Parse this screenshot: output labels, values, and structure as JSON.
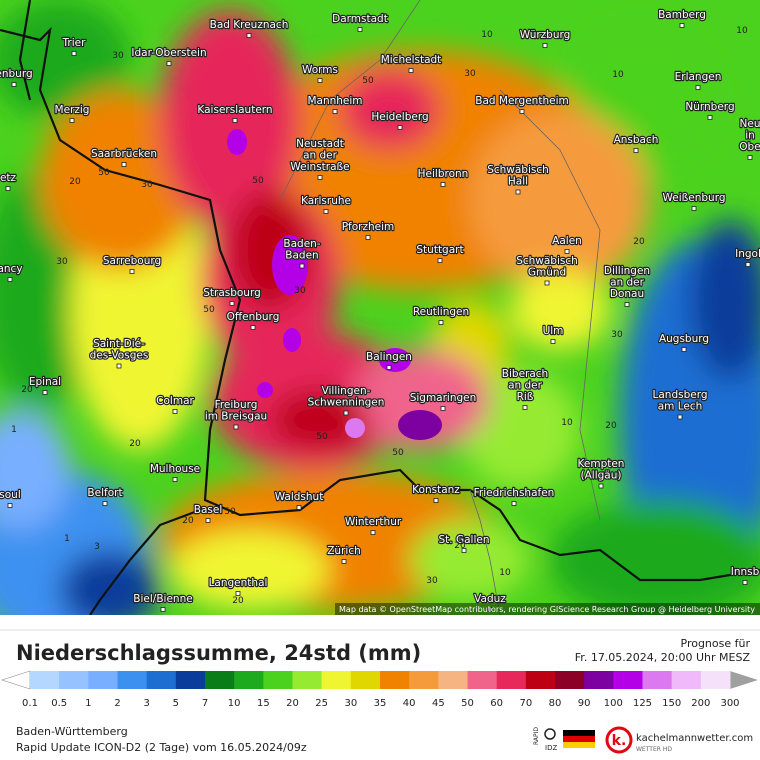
{
  "map": {
    "cities": [
      [
        "Darmstadt"
      ],
      [
        "Bamberg"
      ],
      [
        "Bad Kreuznach"
      ],
      [
        "Trier"
      ],
      [
        "Würzburg"
      ],
      [
        "Idar-Oberstein"
      ],
      [
        "Michelstadt"
      ],
      [
        "Worms"
      ],
      [
        "Erlangen"
      ],
      [
        "enburg"
      ],
      [
        "Merzig"
      ],
      [
        "Kaiserslautern"
      ],
      [
        "Mannheim"
      ],
      [
        "Bad Mergentheim"
      ],
      [
        "Nürnberg"
      ],
      [
        "Heidelberg"
      ],
      [
        "Neu",
        "in",
        "Obe"
      ],
      [
        "Saarbrücken"
      ],
      [
        "Neustadt",
        "an der",
        "Weinstraße"
      ],
      [
        "Ansbach"
      ],
      [
        "etz"
      ],
      [
        "Heilbronn"
      ],
      [
        "Schwäbisch",
        "Hall"
      ],
      [
        "Weißenburg"
      ],
      [
        "Karlsruhe"
      ],
      [
        "Pforzheim"
      ],
      [
        "Baden-",
        "Baden"
      ],
      [
        "Stuttgart"
      ],
      [
        "Aalen"
      ],
      [
        "Ingol"
      ],
      [
        "Sarrebourg"
      ],
      [
        "ancy"
      ],
      [
        "Schwäbisch",
        "Gmünd"
      ],
      [
        "Dillingen",
        "an der",
        "Donau"
      ],
      [
        "Strasbourg"
      ],
      [
        "Offenburg"
      ],
      [
        "Reutlingen"
      ],
      [
        "Ulm"
      ],
      [
        "Augsburg"
      ],
      [
        "Saint-Dié-",
        "des-Vosges"
      ],
      [
        "Balingen"
      ],
      [
        "Biberach",
        "an der",
        "Riß"
      ],
      [
        "Epinal"
      ],
      [
        "Villingen-",
        "Schwenningen"
      ],
      [
        "Sigmaringen"
      ],
      [
        "Landsberg",
        "am Lech"
      ],
      [
        "Colmar"
      ],
      [
        "Freiburg",
        "im Breisgau"
      ],
      [
        "Mulhouse"
      ],
      [
        "Kempten",
        "(Allgäu)"
      ],
      [
        "Konstanz"
      ],
      [
        "Friedrichshafen"
      ],
      [
        "Belfort"
      ],
      [
        "soul"
      ],
      [
        "Waldshut"
      ],
      [
        "Basel"
      ],
      [
        "Winterthur"
      ],
      [
        "St. Gallen"
      ],
      [
        "Zürich"
      ],
      [
        "Innsb"
      ],
      [
        "Langenthal"
      ],
      [
        "Biel/Bienne"
      ],
      [
        "Vaduz"
      ]
    ],
    "contour_labels": [
      "10",
      "10",
      "30",
      "10",
      "50",
      "30",
      "50",
      "20",
      "50",
      "30",
      "30",
      "50",
      "20",
      "20",
      "1",
      "1",
      "3",
      "20",
      "20",
      "10",
      "30",
      "50",
      "50",
      "30",
      "20",
      "20",
      "30",
      "20",
      "10",
      "50"
    ],
    "attribution": "Map data © OpenStreetMap contributors, rendering GIScience Research Group @ Heidelberg University"
  },
  "header": {
    "title": "Niederschlagssumme, 24std (mm)",
    "prognose": "Prognose für",
    "valid": "Fr. 17.05.2024, 20:00 Uhr MESZ"
  },
  "legend": {
    "labels": [
      "0.1",
      "0.5",
      "1",
      "2",
      "3",
      "5",
      "7",
      "10",
      "15",
      "20",
      "25",
      "30",
      "35",
      "40",
      "45",
      "50",
      "60",
      "70",
      "80",
      "90",
      "100",
      "125",
      "150",
      "200",
      "300"
    ],
    "colors": [
      "#b4d7ff",
      "#96c3ff",
      "#78afff",
      "#3c91f0",
      "#1e6ed2",
      "#0a3c9b",
      "#0a7d19",
      "#1eaa1e",
      "#4bd21e",
      "#96eb32",
      "#f0f532",
      "#e1d700",
      "#f08200",
      "#f59b3c",
      "#f5b482",
      "#f0648c",
      "#e6285a",
      "#be0014",
      "#8c0028",
      "#7d00a0",
      "#b400e6",
      "#dc78f0",
      "#f0b9fa",
      "#f5e1fa"
    ],
    "under_color": "#ffffff",
    "over_color": "#a0a0a0"
  },
  "footer": {
    "region": "Baden-Württemberg",
    "run": "Rapid Update ICON-D2 (2 Tage) vom 16.05.2024/09z",
    "logo_top": "RAPID",
    "logo_bottom": "IDZ",
    "logo_k": "k.",
    "brand": "kachelmannwetter.com",
    "brand_sub": "WETTER HD"
  }
}
